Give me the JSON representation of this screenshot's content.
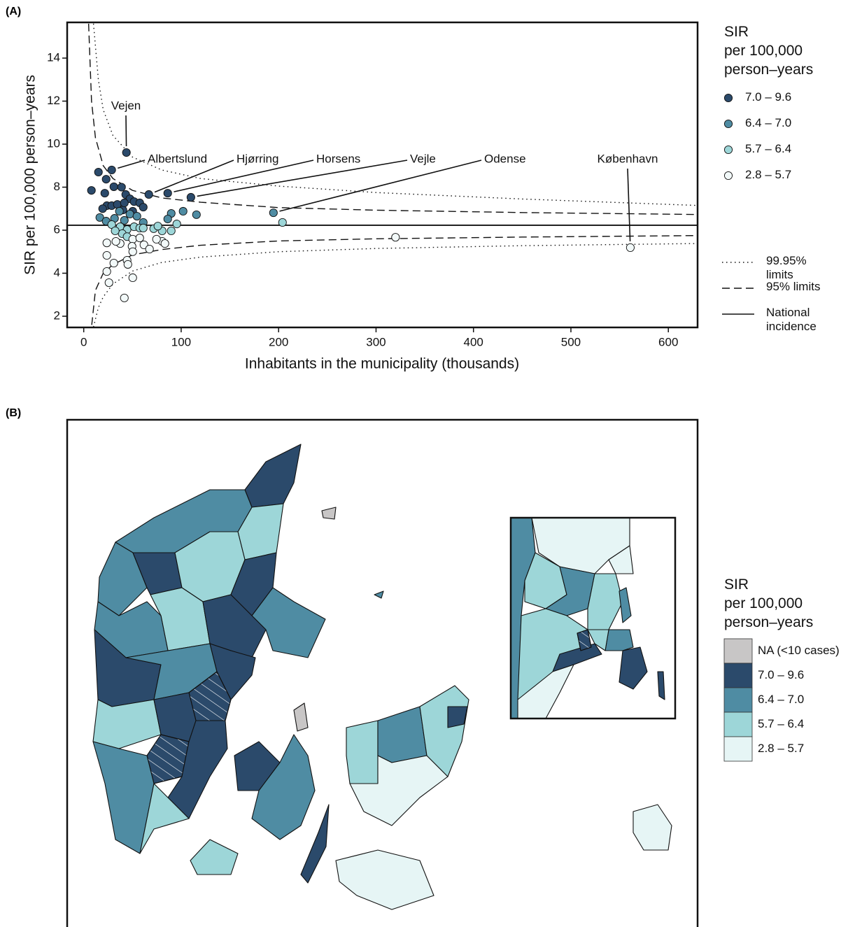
{
  "chart_data": [
    {
      "type": "scatter",
      "label": "(A)",
      "xlabel": "Inhabitants in the municipality (thousands)",
      "ylabel": "SIR per 100,000 person–years",
      "xlim": [
        -17,
        630
      ],
      "ylim": [
        1.48,
        15.66
      ],
      "xticks": [
        0,
        100,
        200,
        300,
        400,
        500,
        600
      ],
      "yticks": [
        2,
        4,
        6,
        8,
        10,
        12,
        14
      ],
      "legend_title": [
        "SIR",
        "per 100,000",
        "person–years"
      ],
      "series": [
        {
          "name": "7.0 – 9.6",
          "color": "#2b4a6b",
          "x": [
            43.8,
            7.9,
            15.1,
            28.7,
            23.0,
            30.9,
            21.6,
            38.8,
            43.1,
            47.4,
            66.8,
            86.2,
            110,
            23.7,
            28.7,
            34.5,
            40.2,
            51.7,
            57.5,
            61.1,
            19.4,
            41.7,
            50.3
          ],
          "values": [
            9.61,
            7.85,
            8.7,
            8.8,
            8.37,
            8.02,
            7.72,
            8.0,
            7.66,
            7.46,
            7.66,
            7.72,
            7.53,
            7.14,
            7.14,
            7.2,
            6.94,
            7.33,
            7.27,
            7.07,
            7.0,
            7.27,
            6.88
          ],
          "point_labels": [
            "Vejen",
            null,
            null,
            "Albertslund",
            null,
            null,
            null,
            null,
            null,
            null,
            "Hjørring",
            "Horsens",
            "Vejle",
            null,
            null,
            null,
            null,
            null,
            null,
            null,
            null,
            null,
            null
          ]
        },
        {
          "name": "6.4 – 7.0",
          "color": "#4f8ca3",
          "x": [
            16.5,
            23.0,
            31.6,
            36.6,
            41.7,
            47.4,
            54.6,
            61.1,
            89.8,
            102,
            115.7,
            194.7,
            86.2
          ],
          "values": [
            6.59,
            6.42,
            6.55,
            6.88,
            6.46,
            6.75,
            6.65,
            6.36,
            6.78,
            6.88,
            6.72,
            6.81,
            6.52
          ],
          "point_labels": [
            null,
            null,
            null,
            null,
            null,
            null,
            null,
            null,
            null,
            null,
            null,
            "Odense",
            null
          ]
        },
        {
          "name": "5.7 – 6.4",
          "color": "#9dd6d8",
          "x": [
            204,
            28.7,
            37.4,
            44.5,
            51.7,
            57.5,
            71.8,
            80.5,
            89.8,
            95.5,
            39.5,
            32.3,
            61.1,
            76.1,
            44.5
          ],
          "values": [
            6.36,
            6.26,
            6.16,
            6.03,
            6.16,
            6.1,
            6.07,
            5.97,
            5.97,
            6.29,
            5.84,
            5.97,
            6.1,
            6.19,
            5.7
          ]
        },
        {
          "name": "2.8 – 5.7",
          "color": "#f2f9f9",
          "x": [
            320,
            561,
            23.7,
            37.4,
            50.3,
            49.6,
            50.3,
            23.7,
            30.9,
            23.7,
            44.5,
            50.3,
            25.9,
            41.7,
            80.5,
            61.8,
            67.5,
            74.7,
            83.3,
            45.3,
            33.0,
            57.5
          ],
          "values": [
            5.67,
            5.19,
            5.41,
            5.38,
            5.58,
            5.25,
            5.0,
            4.83,
            4.47,
            4.08,
            4.6,
            3.79,
            3.56,
            2.85,
            5.48,
            5.32,
            5.12,
            5.58,
            5.38,
            4.41,
            5.48,
            5.64
          ],
          "point_labels": [
            null,
            "København",
            null,
            null,
            null,
            null,
            null,
            null,
            null,
            null,
            null,
            null,
            null,
            null,
            null,
            null,
            null,
            null,
            null,
            null,
            null,
            null
          ]
        }
      ],
      "limits": [
        {
          "name": "99.95% limits",
          "dash": "dotted",
          "x": [
            10,
            15,
            20,
            30,
            50,
            80,
            120,
            200,
            300,
            450,
            630
          ],
          "upper": [
            15.6,
            13.0,
            11.6,
            10.4,
            9.4,
            8.8,
            8.4,
            8.05,
            7.75,
            7.45,
            7.15
          ],
          "lower": [
            1.5,
            2.4,
            2.9,
            3.5,
            4.1,
            4.5,
            4.75,
            5.0,
            5.15,
            5.28,
            5.38
          ]
        },
        {
          "name": "95% limits",
          "dash": "dashed",
          "x": [
            5,
            8,
            12,
            20,
            30,
            50,
            80,
            120,
            200,
            300,
            450,
            630
          ],
          "upper": [
            15.6,
            12.0,
            10.3,
            9.0,
            8.4,
            7.85,
            7.5,
            7.3,
            7.05,
            6.93,
            6.82,
            6.73
          ],
          "lower": [
            0.5,
            1.5,
            3.2,
            4.0,
            4.4,
            4.85,
            5.1,
            5.3,
            5.5,
            5.6,
            5.68,
            5.75
          ]
        }
      ],
      "reference": {
        "name": "National incidence",
        "dash": "solid",
        "value": 6.23
      }
    },
    {
      "type": "map",
      "label": "(B)",
      "legend_title": [
        "SIR",
        "per 100,000",
        "person–years"
      ],
      "classes": [
        {
          "name": "NA (<10 cases)",
          "color": "#c8c6c6"
        },
        {
          "name": "7.0 – 9.6",
          "color": "#2b4a6b"
        },
        {
          "name": "6.4 – 7.0",
          "color": "#4f8ca3"
        },
        {
          "name": "5.7 – 6.4",
          "color": "#9dd6d8"
        },
        {
          "name": "2.8 – 5.7",
          "color": "#e6f5f5"
        }
      ]
    }
  ]
}
